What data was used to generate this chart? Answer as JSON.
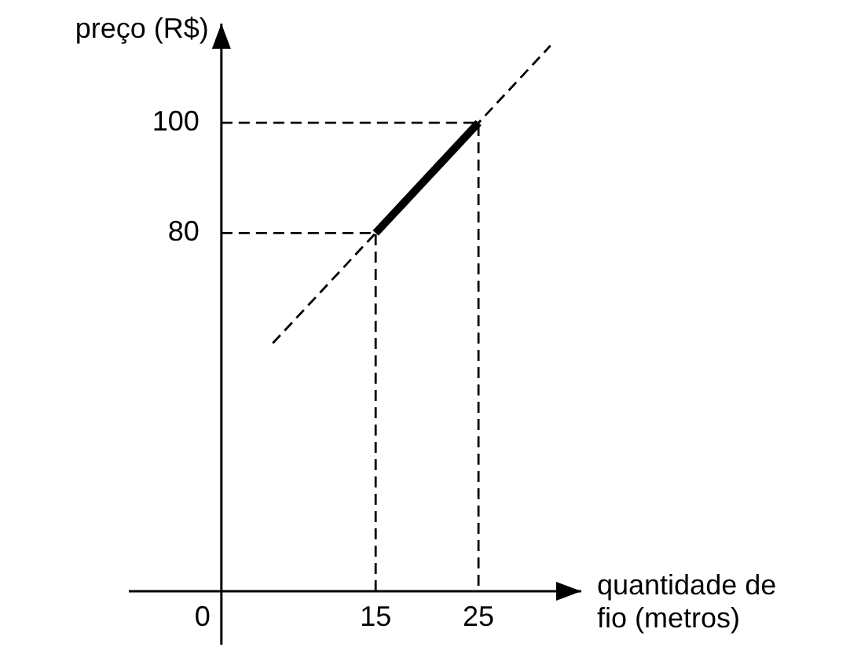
{
  "chart_data": {
    "type": "line",
    "xlabel": "quantidade de fio (metros)",
    "ylabel": "preço (R$)",
    "xlim": [
      -9,
      35
    ],
    "ylim": [
      15,
      118
    ],
    "xticks": [
      0,
      15,
      25
    ],
    "yticks": [
      80,
      100
    ],
    "grid": false,
    "legend": false,
    "marker": "none",
    "series": [
      {
        "x": [
          15,
          25
        ],
        "values": [
          80,
          100
        ],
        "color": "#000000",
        "line_style": "solid"
      },
      {
        "x": [
          5,
          32
        ],
        "values": [
          60,
          114
        ],
        "color": "#000000",
        "line_style": "dashed"
      },
      {
        "x": [
          0,
          15,
          15
        ],
        "values": [
          80,
          80,
          15
        ],
        "color": "#000000",
        "line_style": "dashed"
      },
      {
        "x": [
          0,
          25,
          25
        ],
        "values": [
          100,
          100,
          15
        ],
        "color": "#000000",
        "line_style": "dashed"
      }
    ]
  }
}
